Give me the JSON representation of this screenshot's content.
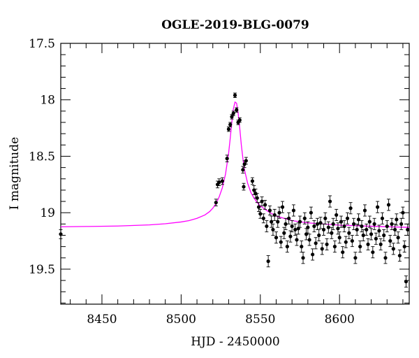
{
  "chart_data": {
    "type": "scatter",
    "title": "OGLE-2019-BLG-0079",
    "xlabel": "HJD - 2450000",
    "ylabel": "I magnitude",
    "xlim": [
      8424,
      8644
    ],
    "ylim": [
      19.81,
      17.5
    ],
    "y_inverted": true,
    "x_ticks": [
      8450,
      8500,
      8550,
      8600
    ],
    "x_tick_labels": [
      "8450",
      "8500",
      "8550",
      "8600"
    ],
    "y_ticks": [
      17.5,
      18,
      18.5,
      19,
      19.5
    ],
    "y_tick_labels": [
      "17.5",
      "18",
      "18.5",
      "19",
      "19.5"
    ],
    "grid": false,
    "colors": {
      "model": "#ff00ff",
      "points": "#000000",
      "frame": "#000000"
    },
    "model": {
      "name": "",
      "x": [
        8424,
        8440,
        8460,
        8480,
        8490,
        8500,
        8505,
        8510,
        8515,
        8518,
        8520,
        8522,
        8524,
        8526,
        8528,
        8530,
        8531,
        8532,
        8533,
        8534,
        8535,
        8536,
        8537,
        8538,
        8539,
        8540,
        8542,
        8544,
        8546,
        8548,
        8550,
        8555,
        8560,
        8570,
        8580,
        8600,
        8620,
        8644
      ],
      "y": [
        19.125,
        19.122,
        19.118,
        19.108,
        19.098,
        19.082,
        19.07,
        19.05,
        19.02,
        18.99,
        18.96,
        18.92,
        18.86,
        18.78,
        18.66,
        18.47,
        18.34,
        18.2,
        18.08,
        18.02,
        18.03,
        18.12,
        18.25,
        18.4,
        18.52,
        18.62,
        18.74,
        18.82,
        18.87,
        18.91,
        18.94,
        18.99,
        19.03,
        19.07,
        19.09,
        19.11,
        19.12,
        19.13
      ]
    },
    "points": [
      [
        8424,
        19.19,
        0.04
      ],
      [
        8522,
        18.91,
        0.03
      ],
      [
        8523,
        18.75,
        0.03
      ],
      [
        8524,
        18.73,
        0.03
      ],
      [
        8526,
        18.72,
        0.03
      ],
      [
        8529,
        18.52,
        0.03
      ],
      [
        8530,
        18.26,
        0.02
      ],
      [
        8531,
        18.22,
        0.02
      ],
      [
        8532,
        18.15,
        0.02
      ],
      [
        8533,
        18.12,
        0.02
      ],
      [
        8534,
        17.96,
        0.02
      ],
      [
        8535,
        18.09,
        0.02
      ],
      [
        8536,
        18.2,
        0.02
      ],
      [
        8537,
        18.18,
        0.02
      ],
      [
        8539,
        18.62,
        0.03
      ],
      [
        8539.5,
        18.77,
        0.03
      ],
      [
        8540,
        18.57,
        0.03
      ],
      [
        8541,
        18.54,
        0.03
      ],
      [
        8545,
        18.72,
        0.03
      ],
      [
        8546,
        18.8,
        0.04
      ],
      [
        8547,
        18.83,
        0.04
      ],
      [
        8548,
        18.87,
        0.04
      ],
      [
        8549,
        18.95,
        0.04
      ],
      [
        8550,
        19.01,
        0.04
      ],
      [
        8551,
        18.9,
        0.04
      ],
      [
        8552,
        19.05,
        0.04
      ],
      [
        8553,
        18.93,
        0.04
      ],
      [
        8554,
        19.12,
        0.05
      ],
      [
        8555,
        19.43,
        0.05
      ],
      [
        8556,
        18.98,
        0.04
      ],
      [
        8557,
        19.08,
        0.05
      ],
      [
        8558,
        19.15,
        0.05
      ],
      [
        8559,
        19.02,
        0.05
      ],
      [
        8560,
        19.22,
        0.05
      ],
      [
        8561,
        19.08,
        0.05
      ],
      [
        8562,
        19.0,
        0.05
      ],
      [
        8563,
        19.26,
        0.05
      ],
      [
        8564,
        18.95,
        0.05
      ],
      [
        8565,
        19.18,
        0.05
      ],
      [
        8566,
        19.1,
        0.05
      ],
      [
        8567,
        19.3,
        0.05
      ],
      [
        8568,
        19.05,
        0.05
      ],
      [
        8569,
        19.21,
        0.05
      ],
      [
        8570,
        19.12,
        0.05
      ],
      [
        8571,
        18.98,
        0.05
      ],
      [
        8572,
        19.15,
        0.05
      ],
      [
        8573,
        19.24,
        0.05
      ],
      [
        8574,
        19.14,
        0.05
      ],
      [
        8575,
        19.08,
        0.05
      ],
      [
        8576,
        19.3,
        0.05
      ],
      [
        8577,
        19.4,
        0.05
      ],
      [
        8578,
        19.05,
        0.05
      ],
      [
        8579,
        19.19,
        0.05
      ],
      [
        8580,
        19.13,
        0.05
      ],
      [
        8581,
        19.24,
        0.05
      ],
      [
        8582,
        19.0,
        0.05
      ],
      [
        8583,
        19.37,
        0.05
      ],
      [
        8584,
        19.12,
        0.05
      ],
      [
        8585,
        19.27,
        0.05
      ],
      [
        8586,
        19.1,
        0.05
      ],
      [
        8587,
        19.2,
        0.05
      ],
      [
        8588,
        19.09,
        0.05
      ],
      [
        8589,
        19.32,
        0.05
      ],
      [
        8590,
        19.15,
        0.05
      ],
      [
        8591,
        19.05,
        0.05
      ],
      [
        8592,
        19.28,
        0.05
      ],
      [
        8593,
        19.13,
        0.05
      ],
      [
        8594,
        18.9,
        0.05
      ],
      [
        8595,
        19.18,
        0.05
      ],
      [
        8596,
        19.1,
        0.05
      ],
      [
        8597,
        19.3,
        0.05
      ],
      [
        8598,
        19.02,
        0.05
      ],
      [
        8599,
        19.14,
        0.05
      ],
      [
        8600,
        19.22,
        0.05
      ],
      [
        8601,
        19.08,
        0.05
      ],
      [
        8602,
        19.35,
        0.05
      ],
      [
        8603,
        19.12,
        0.05
      ],
      [
        8604,
        19.26,
        0.05
      ],
      [
        8605,
        19.05,
        0.05
      ],
      [
        8606,
        19.18,
        0.05
      ],
      [
        8607,
        18.96,
        0.05
      ],
      [
        8608,
        19.25,
        0.05
      ],
      [
        8609,
        19.1,
        0.05
      ],
      [
        8610,
        19.4,
        0.05
      ],
      [
        8611,
        19.15,
        0.05
      ],
      [
        8612,
        19.06,
        0.05
      ],
      [
        8613,
        19.3,
        0.05
      ],
      [
        8614,
        19.12,
        0.05
      ],
      [
        8615,
        19.2,
        0.05
      ],
      [
        8616,
        18.98,
        0.05
      ],
      [
        8617,
        19.15,
        0.05
      ],
      [
        8618,
        19.28,
        0.05
      ],
      [
        8619,
        19.08,
        0.05
      ],
      [
        8620,
        19.19,
        0.05
      ],
      [
        8621,
        19.35,
        0.05
      ],
      [
        8622,
        19.1,
        0.05
      ],
      [
        8623,
        19.23,
        0.05
      ],
      [
        8624,
        18.95,
        0.05
      ],
      [
        8625,
        19.16,
        0.05
      ],
      [
        8626,
        19.28,
        0.05
      ],
      [
        8627,
        19.05,
        0.05
      ],
      [
        8628,
        19.2,
        0.05
      ],
      [
        8629,
        19.4,
        0.05
      ],
      [
        8630,
        19.12,
        0.05
      ],
      [
        8631,
        18.93,
        0.05
      ],
      [
        8632,
        19.25,
        0.05
      ],
      [
        8633,
        19.1,
        0.05
      ],
      [
        8634,
        19.32,
        0.05
      ],
      [
        8635,
        19.15,
        0.05
      ],
      [
        8636,
        19.06,
        0.05
      ],
      [
        8637,
        19.22,
        0.05
      ],
      [
        8638,
        19.38,
        0.05
      ],
      [
        8639,
        19.1,
        0.05
      ],
      [
        8640,
        19.0,
        0.05
      ],
      [
        8641,
        19.3,
        0.05
      ],
      [
        8642,
        19.61,
        0.05
      ],
      [
        8643,
        19.15,
        0.05
      ]
    ]
  }
}
